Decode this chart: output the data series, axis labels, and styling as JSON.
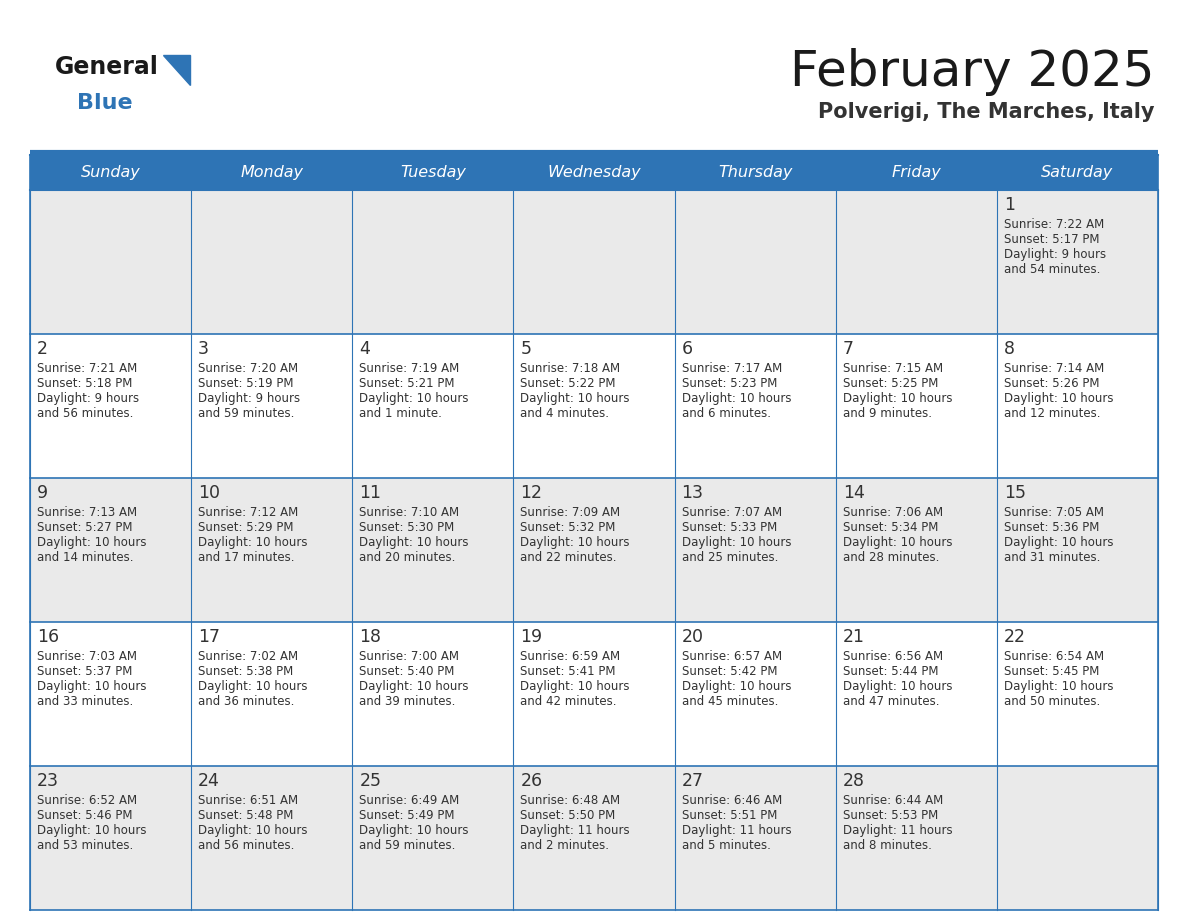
{
  "title": "February 2025",
  "subtitle": "Polverigi, The Marches, Italy",
  "days_of_week": [
    "Sunday",
    "Monday",
    "Tuesday",
    "Wednesday",
    "Thursday",
    "Friday",
    "Saturday"
  ],
  "header_bg": "#2E74B5",
  "header_text": "#FFFFFF",
  "cell_bg_odd": "#EAEAEA",
  "cell_bg_even": "#FFFFFF",
  "border_color": "#2E74B5",
  "text_color": "#333333",
  "logo_general_color": "#1a1a1a",
  "logo_blue_color": "#2E74B5",
  "title_color": "#1a1a1a",
  "subtitle_color": "#333333",
  "calendar_data": [
    {
      "day": 1,
      "col": 6,
      "row": 0,
      "sunrise": "7:22 AM",
      "sunset": "5:17 PM",
      "daylight": "9 hours and 54 minutes."
    },
    {
      "day": 2,
      "col": 0,
      "row": 1,
      "sunrise": "7:21 AM",
      "sunset": "5:18 PM",
      "daylight": "9 hours and 56 minutes."
    },
    {
      "day": 3,
      "col": 1,
      "row": 1,
      "sunrise": "7:20 AM",
      "sunset": "5:19 PM",
      "daylight": "9 hours and 59 minutes."
    },
    {
      "day": 4,
      "col": 2,
      "row": 1,
      "sunrise": "7:19 AM",
      "sunset": "5:21 PM",
      "daylight": "10 hours and 1 minute."
    },
    {
      "day": 5,
      "col": 3,
      "row": 1,
      "sunrise": "7:18 AM",
      "sunset": "5:22 PM",
      "daylight": "10 hours and 4 minutes."
    },
    {
      "day": 6,
      "col": 4,
      "row": 1,
      "sunrise": "7:17 AM",
      "sunset": "5:23 PM",
      "daylight": "10 hours and 6 minutes."
    },
    {
      "day": 7,
      "col": 5,
      "row": 1,
      "sunrise": "7:15 AM",
      "sunset": "5:25 PM",
      "daylight": "10 hours and 9 minutes."
    },
    {
      "day": 8,
      "col": 6,
      "row": 1,
      "sunrise": "7:14 AM",
      "sunset": "5:26 PM",
      "daylight": "10 hours and 12 minutes."
    },
    {
      "day": 9,
      "col": 0,
      "row": 2,
      "sunrise": "7:13 AM",
      "sunset": "5:27 PM",
      "daylight": "10 hours and 14 minutes."
    },
    {
      "day": 10,
      "col": 1,
      "row": 2,
      "sunrise": "7:12 AM",
      "sunset": "5:29 PM",
      "daylight": "10 hours and 17 minutes."
    },
    {
      "day": 11,
      "col": 2,
      "row": 2,
      "sunrise": "7:10 AM",
      "sunset": "5:30 PM",
      "daylight": "10 hours and 20 minutes."
    },
    {
      "day": 12,
      "col": 3,
      "row": 2,
      "sunrise": "7:09 AM",
      "sunset": "5:32 PM",
      "daylight": "10 hours and 22 minutes."
    },
    {
      "day": 13,
      "col": 4,
      "row": 2,
      "sunrise": "7:07 AM",
      "sunset": "5:33 PM",
      "daylight": "10 hours and 25 minutes."
    },
    {
      "day": 14,
      "col": 5,
      "row": 2,
      "sunrise": "7:06 AM",
      "sunset": "5:34 PM",
      "daylight": "10 hours and 28 minutes."
    },
    {
      "day": 15,
      "col": 6,
      "row": 2,
      "sunrise": "7:05 AM",
      "sunset": "5:36 PM",
      "daylight": "10 hours and 31 minutes."
    },
    {
      "day": 16,
      "col": 0,
      "row": 3,
      "sunrise": "7:03 AM",
      "sunset": "5:37 PM",
      "daylight": "10 hours and 33 minutes."
    },
    {
      "day": 17,
      "col": 1,
      "row": 3,
      "sunrise": "7:02 AM",
      "sunset": "5:38 PM",
      "daylight": "10 hours and 36 minutes."
    },
    {
      "day": 18,
      "col": 2,
      "row": 3,
      "sunrise": "7:00 AM",
      "sunset": "5:40 PM",
      "daylight": "10 hours and 39 minutes."
    },
    {
      "day": 19,
      "col": 3,
      "row": 3,
      "sunrise": "6:59 AM",
      "sunset": "5:41 PM",
      "daylight": "10 hours and 42 minutes."
    },
    {
      "day": 20,
      "col": 4,
      "row": 3,
      "sunrise": "6:57 AM",
      "sunset": "5:42 PM",
      "daylight": "10 hours and 45 minutes."
    },
    {
      "day": 21,
      "col": 5,
      "row": 3,
      "sunrise": "6:56 AM",
      "sunset": "5:44 PM",
      "daylight": "10 hours and 47 minutes."
    },
    {
      "day": 22,
      "col": 6,
      "row": 3,
      "sunrise": "6:54 AM",
      "sunset": "5:45 PM",
      "daylight": "10 hours and 50 minutes."
    },
    {
      "day": 23,
      "col": 0,
      "row": 4,
      "sunrise": "6:52 AM",
      "sunset": "5:46 PM",
      "daylight": "10 hours and 53 minutes."
    },
    {
      "day": 24,
      "col": 1,
      "row": 4,
      "sunrise": "6:51 AM",
      "sunset": "5:48 PM",
      "daylight": "10 hours and 56 minutes."
    },
    {
      "day": 25,
      "col": 2,
      "row": 4,
      "sunrise": "6:49 AM",
      "sunset": "5:49 PM",
      "daylight": "10 hours and 59 minutes."
    },
    {
      "day": 26,
      "col": 3,
      "row": 4,
      "sunrise": "6:48 AM",
      "sunset": "5:50 PM",
      "daylight": "11 hours and 2 minutes."
    },
    {
      "day": 27,
      "col": 4,
      "row": 4,
      "sunrise": "6:46 AM",
      "sunset": "5:51 PM",
      "daylight": "11 hours and 5 minutes."
    },
    {
      "day": 28,
      "col": 5,
      "row": 4,
      "sunrise": "6:44 AM",
      "sunset": "5:53 PM",
      "daylight": "11 hours and 8 minutes."
    }
  ]
}
